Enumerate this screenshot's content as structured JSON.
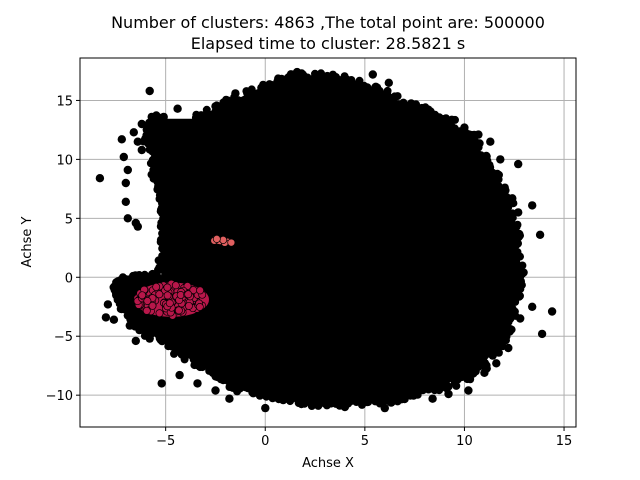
{
  "chart_data": {
    "type": "scatter",
    "title_lines": [
      "Number of clusters: 4863 ,The total point are: 500000",
      "Elapsed time to cluster:  28.5821 s"
    ],
    "xlabel": "Achse X",
    "ylabel": "Achse Y",
    "xlim": [
      -9.3,
      15.6
    ],
    "ylim": [
      -12.7,
      18.6
    ],
    "xticks": [
      -5,
      0,
      5,
      10,
      15
    ],
    "yticks": [
      -10,
      -5,
      0,
      5,
      10,
      15
    ],
    "grid": true,
    "legend": "none",
    "colors": {
      "main_cluster": "#000000",
      "cluster_crimson": "#b8174a",
      "cluster_salmon": "#e06060",
      "grid": "#b0b0b0"
    },
    "regions": [
      {
        "name": "main cluster",
        "color": "#000000",
        "outline_x": [
          -3.4,
          -2.0,
          -0.2,
          1.0,
          1.9,
          3.6,
          5.2,
          7.4,
          9.0,
          10.4,
          11.6,
          12.4,
          12.7,
          12.3,
          11.6,
          10.7,
          9.7,
          8.2,
          6.6,
          4.3,
          2.0,
          0.4,
          -1.2,
          -2.6,
          -4.0,
          -4.9,
          -5.6,
          -6.6,
          -7.1,
          -7.3,
          -6.2,
          -5.1,
          -4.9,
          -4.9,
          -5.4,
          -5.8,
          -5.4
        ],
        "outline_y": [
          13.2,
          14.4,
          15.8,
          16.4,
          16.9,
          16.6,
          15.6,
          14.3,
          13.1,
          11.2,
          8.2,
          4.7,
          0.6,
          -3.4,
          -5.7,
          -7.4,
          -8.4,
          -9.2,
          -10.1,
          -10.4,
          -10.3,
          -9.9,
          -9.1,
          -7.7,
          -6.3,
          -5.0,
          -4.5,
          -3.5,
          -2.0,
          -0.7,
          -0.3,
          -0.2,
          3.2,
          6.0,
          9.0,
          12.0,
          13.2
        ]
      }
    ],
    "clusters": [
      {
        "name": "crimson cluster",
        "color": "#b8174a",
        "center": [
          -4.7,
          -1.9
        ],
        "radius": [
          1.9,
          1.5
        ]
      },
      {
        "name": "salmon cluster",
        "color": "#e06060",
        "center": [
          -2.1,
          3.05
        ],
        "radius": [
          0.55,
          0.3
        ]
      }
    ],
    "outlier_points": [
      [
        -8.3,
        8.4
      ],
      [
        -5.8,
        15.8
      ],
      [
        -5.2,
        -9.0
      ],
      [
        -1.5,
        15.6
      ],
      [
        -3.0,
        -1.8
      ],
      [
        -7.2,
        11.7
      ],
      [
        -7.0,
        6.4
      ],
      [
        -7.0,
        8.0
      ],
      [
        -6.9,
        9.1
      ],
      [
        -6.5,
        4.6
      ],
      [
        -6.6,
        12.3
      ],
      [
        -6.4,
        11.5
      ],
      [
        -6.9,
        5.0
      ],
      [
        -7.1,
        10.2
      ],
      [
        -6.2,
        10.8
      ],
      [
        -6.2,
        13.0
      ],
      [
        -5.7,
        13.6
      ],
      [
        -5.1,
        13.6
      ],
      [
        -4.4,
        14.3
      ],
      [
        -6.4,
        4.3
      ],
      [
        -6.8,
        -4.1
      ],
      [
        -7.4,
        -1.9
      ],
      [
        -7.9,
        -2.3
      ],
      [
        -8.0,
        -3.4
      ],
      [
        -7.6,
        -3.6
      ],
      [
        -6.5,
        -5.4
      ],
      [
        -5.8,
        -5.2
      ],
      [
        -4.3,
        -8.3
      ],
      [
        -3.4,
        -9.0
      ],
      [
        -2.5,
        -9.6
      ],
      [
        -1.8,
        -10.3
      ],
      [
        0.0,
        -11.1
      ],
      [
        1.3,
        -10.2
      ],
      [
        3.3,
        -10.7
      ],
      [
        4.0,
        -11.0
      ],
      [
        6.0,
        -11.1
      ],
      [
        6.7,
        -10.1
      ],
      [
        8.4,
        -10.3
      ],
      [
        9.2,
        -9.9
      ],
      [
        10.2,
        -9.6
      ],
      [
        11.0,
        -8.1
      ],
      [
        11.6,
        -7.3
      ],
      [
        12.2,
        -6.0
      ],
      [
        12.3,
        -4.4
      ],
      [
        12.0,
        -3.2
      ],
      [
        12.8,
        -3.5
      ],
      [
        13.9,
        -4.8
      ],
      [
        14.4,
        -2.9
      ],
      [
        13.4,
        -2.5
      ],
      [
        12.9,
        0.3
      ],
      [
        13.8,
        3.6
      ],
      [
        12.7,
        5.5
      ],
      [
        12.4,
        6.7
      ],
      [
        12.7,
        9.6
      ],
      [
        11.6,
        8.6
      ],
      [
        11.8,
        10.0
      ],
      [
        11.3,
        11.5
      ],
      [
        10.7,
        12.1
      ],
      [
        10.0,
        12.7
      ],
      [
        6.2,
        16.5
      ],
      [
        5.4,
        17.2
      ],
      [
        4.5,
        15.5
      ],
      [
        2.8,
        16.0
      ],
      [
        1.6,
        17.4
      ],
      [
        12.2,
        0.8
      ],
      [
        13.4,
        6.1
      ]
    ],
    "outline_samples": 1600
  }
}
